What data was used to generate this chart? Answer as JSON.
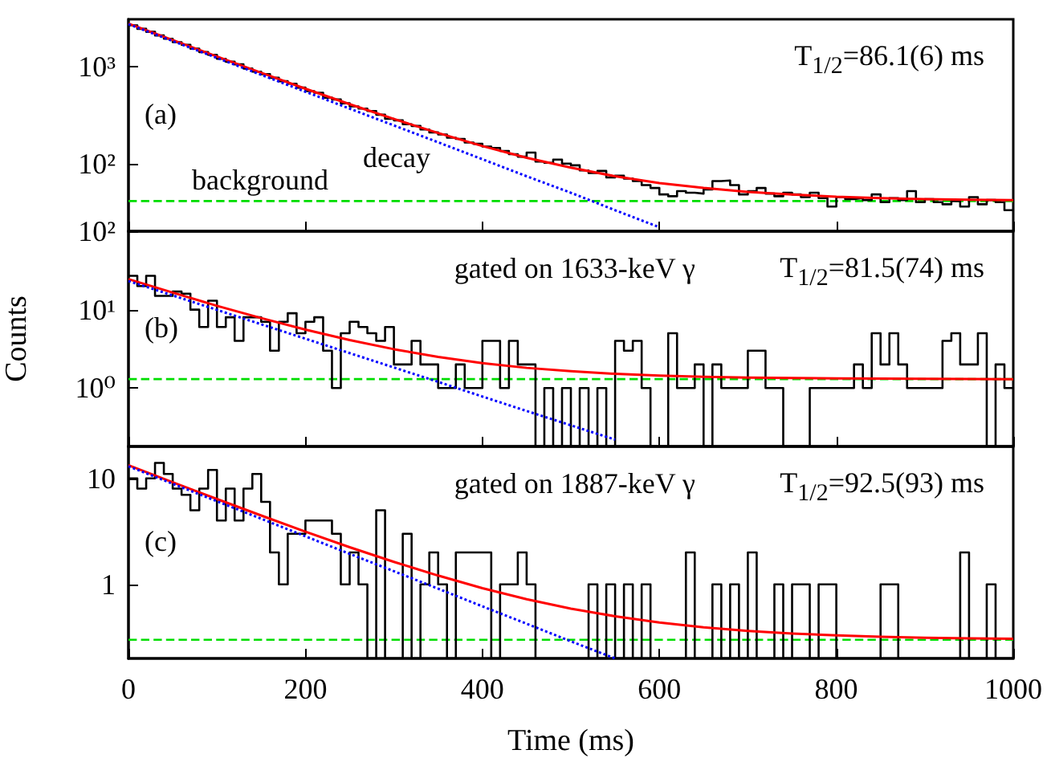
{
  "chart_data": [
    {
      "type": "histogram",
      "log": "y",
      "xlim": [
        0,
        1000
      ],
      "xticks": [
        0,
        200,
        400,
        600,
        800,
        1000
      ],
      "ylim": [
        20,
        3100
      ],
      "yticks": [
        {
          "value": 100,
          "label": "10²"
        },
        {
          "value": 1000,
          "label": "10³"
        }
      ],
      "tick_labels": "y",
      "annotations": [
        "(a)",
        "T$_{1/2}$=86.1(6) ms",
        "decay",
        "background"
      ],
      "ref_lines": [
        {
          "axis": "y",
          "value": 41,
          "color": "#00dd00",
          "line_style": "dashed"
        }
      ],
      "series": [
        {
          "type": "histogram",
          "color": "#000000",
          "bins": [
            0,
            10,
            20,
            30,
            40,
            50,
            60,
            70,
            80,
            90,
            100,
            110,
            120,
            130,
            140,
            150,
            160,
            170,
            180,
            190,
            200,
            210,
            220,
            230,
            240,
            250,
            260,
            270,
            280,
            290,
            300,
            310,
            320,
            330,
            340,
            350,
            360,
            370,
            380,
            390,
            400,
            410,
            420,
            430,
            440,
            450,
            460,
            470,
            480,
            490,
            500,
            510,
            520,
            530,
            540,
            550,
            560,
            570,
            580,
            590,
            600,
            610,
            620,
            630,
            640,
            650,
            660,
            670,
            680,
            690,
            700,
            710,
            720,
            730,
            740,
            750,
            760,
            770,
            780,
            790,
            800,
            810,
            820,
            830,
            840,
            850,
            860,
            870,
            880,
            890,
            900,
            910,
            920,
            930,
            940,
            950,
            960,
            970,
            980,
            990,
            1000
          ],
          "values": [
            2690,
            2470,
            2300,
            2110,
            1950,
            1800,
            1690,
            1540,
            1420,
            1330,
            1210,
            1130,
            1060,
            960,
            890,
            840,
            770,
            710,
            670,
            610,
            560,
            540,
            480,
            460,
            420,
            390,
            370,
            350,
            320,
            290,
            280,
            255,
            245,
            225,
            210,
            200,
            185,
            180,
            165,
            160,
            150,
            145,
            135,
            125,
            118,
            130,
            105,
            102,
            110,
            100,
            96,
            85,
            80,
            84,
            72,
            75,
            70,
            66,
            60,
            56,
            48,
            46,
            52,
            50,
            49,
            54,
            66,
            67,
            60,
            48,
            52,
            56,
            49,
            46,
            50,
            48,
            45,
            50,
            44,
            36,
            45,
            43,
            44,
            42,
            48,
            40,
            44,
            42,
            52,
            40,
            43,
            40,
            38,
            41,
            36,
            45,
            38,
            42,
            40,
            33
          ]
        },
        {
          "type": "line",
          "color": "#ff0000",
          "x": [
            0,
            50,
            100,
            150,
            200,
            250,
            300,
            350,
            400,
            450,
            500,
            550,
            600,
            650,
            700,
            750,
            800,
            850,
            900,
            950,
            1000
          ],
          "values": [
            2800,
            1888,
            1277,
            868,
            594,
            411,
            289,
            207,
            152,
            115,
            91,
            74,
            63,
            56,
            51,
            48,
            45.4,
            44,
            43,
            42.3,
            41.9
          ]
        },
        {
          "type": "line",
          "color": "#0000ff",
          "line_style": "dotted",
          "x": [
            0,
            50,
            100,
            150,
            200,
            250,
            300,
            350,
            400,
            450,
            500,
            550,
            600
          ],
          "values": [
            2760,
            1846,
            1236,
            827,
            553,
            370,
            248,
            166,
            111,
            74,
            50,
            33,
            22
          ]
        }
      ]
    },
    {
      "type": "histogram",
      "log": "y",
      "xlim": [
        0,
        1000
      ],
      "xticks": [
        0,
        200,
        400,
        600,
        800,
        1000
      ],
      "ylim": [
        0.18,
        100
      ],
      "yticks": [
        {
          "value": 1,
          "label": "10⁰"
        },
        {
          "value": 10,
          "label": "10¹"
        },
        {
          "value": 100,
          "label": "10²"
        }
      ],
      "tick_labels": "y",
      "ylabel": "Counts",
      "title": "gated on 1633-keV γ",
      "annotations": [
        "(b)",
        "T$_{1/2}$=81.5(74) ms"
      ],
      "ref_lines": [
        {
          "axis": "y",
          "value": 1.3,
          "color": "#00dd00",
          "line_style": "dashed"
        }
      ],
      "series": [
        {
          "type": "histogram",
          "color": "#000000",
          "bins": [
            0,
            10,
            20,
            30,
            40,
            50,
            60,
            70,
            80,
            90,
            100,
            110,
            120,
            130,
            140,
            150,
            160,
            170,
            180,
            190,
            200,
            210,
            220,
            230,
            240,
            250,
            260,
            270,
            280,
            290,
            300,
            310,
            320,
            330,
            340,
            350,
            360,
            370,
            380,
            390,
            400,
            410,
            420,
            430,
            440,
            450,
            460,
            470,
            480,
            490,
            500,
            510,
            520,
            530,
            540,
            550,
            560,
            570,
            580,
            590,
            600,
            610,
            620,
            630,
            640,
            650,
            660,
            670,
            680,
            690,
            700,
            710,
            720,
            730,
            740,
            750,
            760,
            770,
            780,
            790,
            800,
            810,
            820,
            830,
            840,
            850,
            860,
            870,
            880,
            890,
            900,
            910,
            920,
            930,
            940,
            950,
            960,
            970,
            980,
            990,
            1000
          ],
          "values": [
            27,
            20,
            27,
            15,
            15,
            17,
            16,
            10,
            6,
            13,
            6,
            8,
            4,
            8,
            8,
            7,
            3,
            7,
            9,
            5,
            7,
            8,
            3,
            1,
            5,
            7,
            6,
            5,
            4,
            6,
            2,
            2,
            4,
            2,
            2,
            1,
            1,
            2,
            1,
            1,
            4,
            4,
            1,
            4,
            2,
            2,
            null,
            1,
            null,
            1,
            null,
            1,
            null,
            1,
            null,
            4,
            3,
            4,
            1,
            null,
            null,
            5,
            1,
            1,
            2,
            null,
            2,
            1,
            1,
            1,
            3,
            3,
            1,
            1,
            null,
            null,
            null,
            1,
            1,
            1,
            1,
            1,
            2,
            1,
            5,
            2,
            5,
            2,
            1,
            1,
            1,
            1,
            4,
            5,
            2,
            2,
            5,
            null,
            2,
            1
          ]
        },
        {
          "type": "line",
          "color": "#ff0000",
          "x": [
            0,
            50,
            100,
            150,
            200,
            250,
            300,
            350,
            400,
            450,
            500,
            550,
            600,
            650,
            700,
            750,
            800,
            850,
            900,
            950,
            1000
          ],
          "values": [
            24.5,
            16.5,
            11.2,
            7.8,
            5.56,
            4.09,
            3.13,
            2.5,
            2.08,
            1.81,
            1.64,
            1.52,
            1.44,
            1.39,
            1.36,
            1.34,
            1.33,
            1.32,
            1.31,
            1.305,
            1.3
          ]
        },
        {
          "type": "line",
          "color": "#0000ff",
          "line_style": "dotted",
          "x": [
            0,
            50,
            100,
            150,
            200,
            250,
            300,
            350,
            400,
            450,
            500,
            550
          ],
          "values": [
            23.2,
            15.2,
            9.94,
            6.51,
            4.26,
            2.79,
            1.83,
            1.2,
            0.78,
            0.51,
            0.335,
            0.22
          ]
        }
      ]
    },
    {
      "type": "histogram",
      "log": "y",
      "xlim": [
        0,
        1000
      ],
      "xticks": [
        0,
        200,
        400,
        600,
        800,
        1000
      ],
      "ylim": [
        0.2,
        20
      ],
      "yticks": [
        1,
        10
      ],
      "xlabel": "Time (ms)",
      "title": "gated on 1887-keV γ",
      "annotations": [
        "(c)",
        "T$_{1/2}$=92.5(93) ms"
      ],
      "ref_lines": [
        {
          "axis": "y",
          "value": 0.3,
          "color": "#00dd00",
          "line_style": "dashed"
        }
      ],
      "series": [
        {
          "type": "histogram",
          "color": "#000000",
          "bins": [
            0,
            10,
            20,
            30,
            40,
            50,
            60,
            70,
            80,
            90,
            100,
            110,
            120,
            130,
            140,
            150,
            160,
            170,
            180,
            190,
            200,
            210,
            220,
            230,
            240,
            250,
            260,
            270,
            280,
            290,
            300,
            310,
            320,
            330,
            340,
            350,
            360,
            370,
            380,
            390,
            400,
            410,
            420,
            430,
            440,
            450,
            460,
            470,
            480,
            490,
            500,
            510,
            520,
            530,
            540,
            550,
            560,
            570,
            580,
            590,
            600,
            610,
            620,
            630,
            640,
            650,
            660,
            670,
            680,
            690,
            700,
            710,
            720,
            730,
            740,
            750,
            760,
            770,
            780,
            790,
            800,
            810,
            820,
            830,
            840,
            850,
            860,
            870,
            880,
            890,
            900,
            910,
            920,
            930,
            940,
            950,
            960,
            970,
            980,
            990,
            1000
          ],
          "values": [
            10,
            8,
            10,
            14,
            11,
            8,
            7,
            5,
            8,
            12,
            4,
            8,
            4,
            8,
            11,
            6,
            2,
            1,
            3,
            3,
            4,
            4,
            4,
            3,
            1,
            2,
            1,
            null,
            5,
            null,
            null,
            3,
            null,
            1,
            2,
            1,
            null,
            2,
            2,
            2,
            2,
            null,
            1,
            1,
            2,
            1,
            null,
            null,
            null,
            null,
            null,
            null,
            1,
            null,
            1,
            null,
            1,
            null,
            1,
            null,
            null,
            null,
            null,
            2,
            null,
            null,
            1,
            null,
            1,
            null,
            2,
            null,
            null,
            1,
            null,
            1,
            1,
            null,
            1,
            1,
            null,
            null,
            null,
            null,
            null,
            1,
            1,
            null,
            null,
            null,
            null,
            null,
            null,
            null,
            2,
            null,
            null,
            1,
            null,
            null
          ]
        },
        {
          "type": "line",
          "color": "#ff0000",
          "x": [
            0,
            50,
            100,
            150,
            200,
            250,
            300,
            350,
            400,
            450,
            500,
            550,
            600,
            650,
            700,
            750,
            800,
            850,
            900,
            950,
            1000
          ],
          "values": [
            13.3,
            9.19,
            6.38,
            4.46,
            3.14,
            2.24,
            1.63,
            1.21,
            0.92,
            0.725,
            0.59,
            0.5,
            0.436,
            0.393,
            0.364,
            0.344,
            0.33,
            0.32,
            0.314,
            0.31,
            0.307
          ]
        },
        {
          "type": "line",
          "color": "#0000ff",
          "line_style": "dotted",
          "x": [
            0,
            50,
            100,
            150,
            200,
            250,
            300,
            350,
            400,
            450,
            500,
            550
          ],
          "values": [
            13,
            8.89,
            6.08,
            4.16,
            2.84,
            1.94,
            1.33,
            0.91,
            0.62,
            0.425,
            0.29,
            0.2
          ]
        }
      ]
    }
  ]
}
